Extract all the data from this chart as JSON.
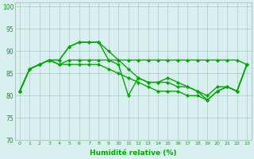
{
  "xlabel": "Humidité relative (%)",
  "xlim": [
    -0.5,
    23.5
  ],
  "ylim": [
    70,
    101
  ],
  "yticks": [
    70,
    75,
    80,
    85,
    90,
    95,
    100
  ],
  "xticks": [
    0,
    1,
    2,
    3,
    4,
    5,
    6,
    7,
    8,
    9,
    10,
    11,
    12,
    13,
    14,
    15,
    16,
    17,
    18,
    19,
    20,
    21,
    22,
    23
  ],
  "bg_color": "#d8f0f0",
  "grid_color": "#b0c8c8",
  "line_color": "#00aa00",
  "line_width": 1.0,
  "marker": "D",
  "marker_size": 2.0,
  "xlabel_fontsize": 6.5,
  "xlabel_fontweight": "bold",
  "xtick_fontsize": 4.5,
  "ytick_fontsize": 5.5,
  "curves": [
    [
      81,
      86,
      87,
      88,
      88,
      91,
      92,
      92,
      92,
      90,
      88,
      86,
      84,
      83,
      83,
      84,
      83,
      82,
      81,
      80,
      82,
      82,
      81,
      87
    ],
    [
      81,
      86,
      87,
      88,
      88,
      91,
      92,
      92,
      92,
      88,
      87,
      80,
      84,
      83,
      83,
      83,
      82,
      82,
      81,
      79,
      81,
      82,
      81,
      87
    ],
    [
      81,
      86,
      87,
      88,
      87,
      88,
      88,
      88,
      88,
      88,
      88,
      88,
      88,
      88,
      88,
      88,
      88,
      88,
      88,
      88,
      88,
      88,
      88,
      87
    ],
    [
      81,
      86,
      87,
      88,
      87,
      87,
      87,
      87,
      87,
      86,
      85,
      84,
      83,
      82,
      81,
      81,
      81,
      80,
      80,
      79,
      81,
      82,
      81,
      87
    ]
  ]
}
